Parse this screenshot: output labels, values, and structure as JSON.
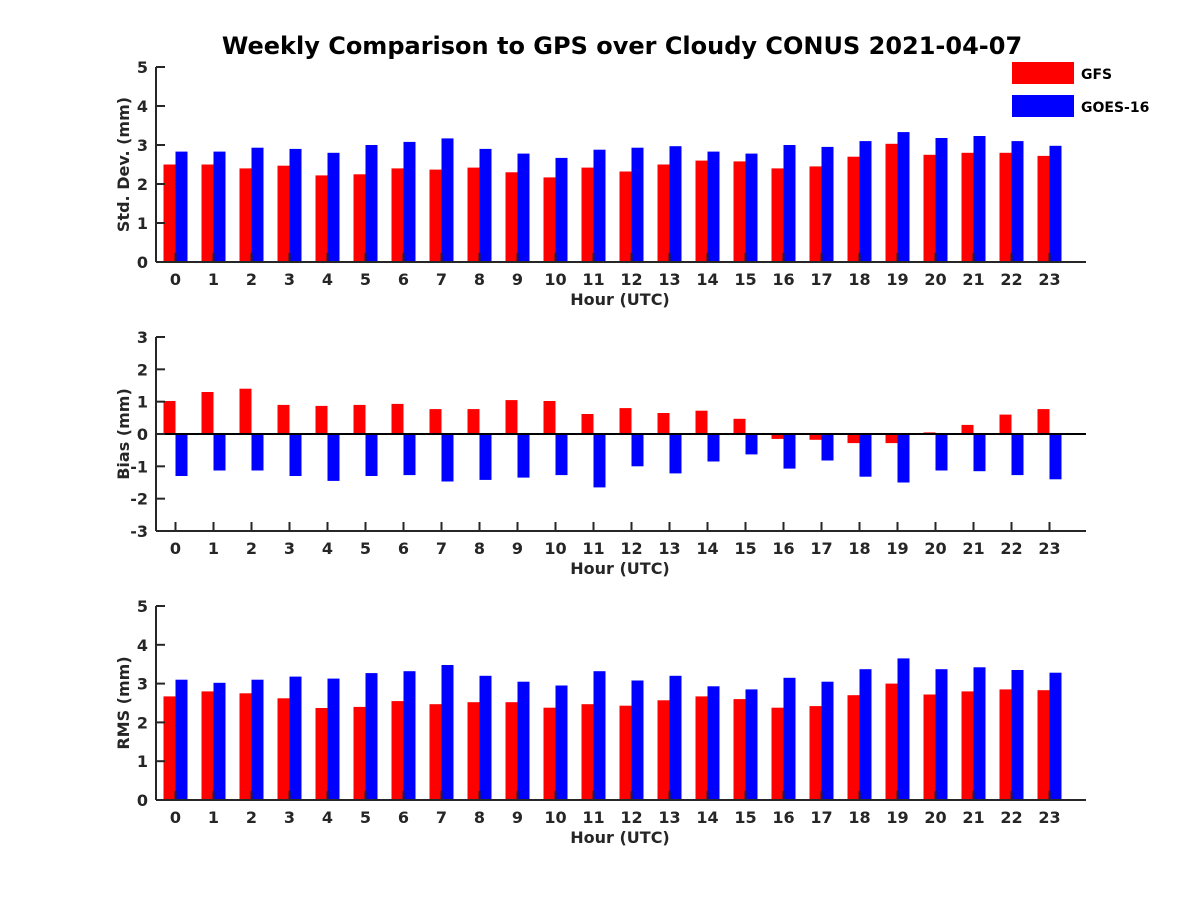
{
  "figure": {
    "title": "Weekly Comparison to GPS over Cloudy CONUS 2021-04-07"
  },
  "colors": {
    "GFS": "#ff0000",
    "GOES-16": "#0000ff"
  },
  "legend": [
    {
      "name": "GFS",
      "color": "#ff0000"
    },
    {
      "name": "GOES-16",
      "color": "#0000ff"
    }
  ],
  "chart_data": [
    {
      "type": "bar",
      "title": "Weekly Comparison to GPS over Cloudy CONUS 2021-04-07",
      "xlabel": "Hour (UTC)",
      "ylabel": "Std. Dev. (mm)",
      "categories": [
        "0",
        "1",
        "2",
        "3",
        "4",
        "5",
        "6",
        "7",
        "8",
        "9",
        "10",
        "11",
        "12",
        "13",
        "14",
        "15",
        "16",
        "17",
        "18",
        "19",
        "20",
        "21",
        "22",
        "23"
      ],
      "ylim": [
        0,
        5
      ],
      "yticks": [
        0,
        1,
        2,
        3,
        4,
        5
      ],
      "grid": false,
      "legend_position": "top-right",
      "series": [
        {
          "name": "GFS",
          "color": "#ff0000",
          "values": [
            2.5,
            2.5,
            2.4,
            2.47,
            2.22,
            2.25,
            2.4,
            2.37,
            2.42,
            2.3,
            2.17,
            2.42,
            2.32,
            2.5,
            2.6,
            2.58,
            2.4,
            2.45,
            2.7,
            3.03,
            2.75,
            2.8,
            2.8,
            2.72
          ]
        },
        {
          "name": "GOES-16",
          "color": "#0000ff",
          "values": [
            2.83,
            2.83,
            2.93,
            2.9,
            2.8,
            3.0,
            3.08,
            3.17,
            2.9,
            2.78,
            2.67,
            2.88,
            2.93,
            2.97,
            2.83,
            2.78,
            3.0,
            2.95,
            3.1,
            3.33,
            3.18,
            3.23,
            3.1,
            2.98
          ]
        }
      ]
    },
    {
      "type": "bar",
      "xlabel": "Hour (UTC)",
      "ylabel": "Bias (mm)",
      "categories": [
        "0",
        "1",
        "2",
        "3",
        "4",
        "5",
        "6",
        "7",
        "8",
        "9",
        "10",
        "11",
        "12",
        "13",
        "14",
        "15",
        "16",
        "17",
        "18",
        "19",
        "20",
        "21",
        "22",
        "23"
      ],
      "ylim": [
        -3,
        3
      ],
      "yticks": [
        -3,
        -2,
        -1,
        0,
        1,
        2,
        3
      ],
      "grid": false,
      "series": [
        {
          "name": "GFS",
          "color": "#ff0000",
          "values": [
            1.02,
            1.3,
            1.4,
            0.9,
            0.87,
            0.9,
            0.93,
            0.77,
            0.77,
            1.05,
            1.02,
            0.62,
            0.8,
            0.65,
            0.72,
            0.47,
            -0.15,
            -0.18,
            -0.28,
            -0.28,
            0.05,
            0.28,
            0.6,
            0.77
          ]
        },
        {
          "name": "GOES-16",
          "color": "#0000ff",
          "values": [
            -1.3,
            -1.13,
            -1.13,
            -1.3,
            -1.45,
            -1.3,
            -1.27,
            -1.47,
            -1.42,
            -1.35,
            -1.27,
            -1.65,
            -1.0,
            -1.22,
            -0.85,
            -0.63,
            -1.07,
            -0.82,
            -1.32,
            -1.5,
            -1.13,
            -1.15,
            -1.27,
            -1.4
          ]
        }
      ]
    },
    {
      "type": "bar",
      "xlabel": "Hour (UTC)",
      "ylabel": "RMS (mm)",
      "categories": [
        "0",
        "1",
        "2",
        "3",
        "4",
        "5",
        "6",
        "7",
        "8",
        "9",
        "10",
        "11",
        "12",
        "13",
        "14",
        "15",
        "16",
        "17",
        "18",
        "19",
        "20",
        "21",
        "22",
        "23"
      ],
      "ylim": [
        0,
        5
      ],
      "yticks": [
        0,
        1,
        2,
        3,
        4,
        5
      ],
      "grid": false,
      "series": [
        {
          "name": "GFS",
          "color": "#ff0000",
          "values": [
            2.67,
            2.8,
            2.75,
            2.62,
            2.37,
            2.4,
            2.55,
            2.47,
            2.52,
            2.52,
            2.38,
            2.47,
            2.43,
            2.57,
            2.67,
            2.6,
            2.38,
            2.42,
            2.7,
            3.0,
            2.72,
            2.8,
            2.85,
            2.83
          ]
        },
        {
          "name": "GOES-16",
          "color": "#0000ff",
          "values": [
            3.1,
            3.02,
            3.1,
            3.18,
            3.13,
            3.27,
            3.32,
            3.48,
            3.2,
            3.05,
            2.95,
            3.32,
            3.08,
            3.2,
            2.93,
            2.85,
            3.15,
            3.05,
            3.37,
            3.65,
            3.37,
            3.42,
            3.35,
            3.28
          ]
        }
      ]
    }
  ]
}
